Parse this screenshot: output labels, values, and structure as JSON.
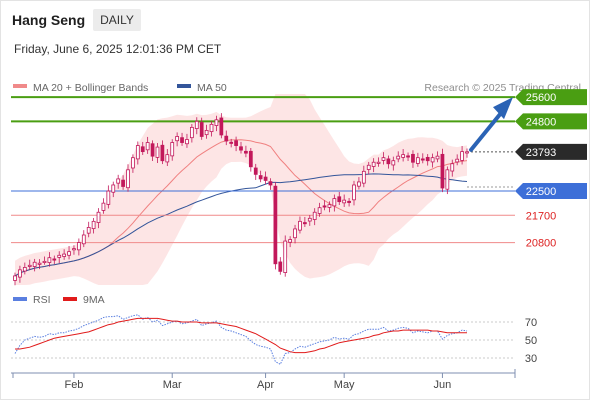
{
  "header": {
    "instrument": "Hang Seng",
    "timeframe": "DAILY",
    "timestamp": "Friday, June 6, 2025 12:01:36 PM CET",
    "copyright": "Research © 2025 Trading Central"
  },
  "colors": {
    "support_resistance_green": "#4a9e12",
    "pivot_blue": "#3d6fd8",
    "target_red": "#f08a8a",
    "candle": "#c2185b",
    "band_fill": "#fde0e0",
    "ma20": "#f08080",
    "ma50": "#33559a",
    "rsi": "#5a7fe0",
    "rsi_ma": "#e11b1b",
    "arrow": "#2b63b5",
    "last_price_bg": "#2a2a2a"
  },
  "chart_data": [
    {
      "type": "candlestick",
      "title": "Hang Seng",
      "legend": [
        {
          "label": "MA 20 + Bollinger Bands",
          "color": "#f08a8a"
        },
        {
          "label": "MA 50",
          "color": "#33559a"
        }
      ],
      "x_ticks": [
        "Feb",
        "Mar",
        "Apr",
        "May",
        "Jun"
      ],
      "ylim": [
        19400,
        25800
      ],
      "levels": [
        {
          "label": "25600",
          "value": 25600,
          "kind": "resistance"
        },
        {
          "label": "24800",
          "value": 24800,
          "kind": "resistance"
        },
        {
          "label": "23793",
          "value": 23793,
          "kind": "last"
        },
        {
          "label": "22500",
          "value": 22500,
          "kind": "pivot"
        },
        {
          "label": "21700",
          "value": 21700,
          "kind": "support"
        },
        {
          "label": "20800",
          "value": 20800,
          "kind": "support"
        }
      ],
      "close": [
        19700,
        19900,
        19980,
        20050,
        20150,
        20120,
        20180,
        20300,
        20250,
        20380,
        20420,
        20500,
        20600,
        20800,
        21050,
        21300,
        21500,
        21800,
        22100,
        22500,
        22700,
        22900,
        22650,
        23200,
        23600,
        24000,
        23800,
        24100,
        23650,
        23950,
        23500,
        23700,
        24100,
        24300,
        24100,
        24200,
        24600,
        24800,
        24300,
        24500,
        24700,
        24850,
        24350,
        24150,
        24100,
        24000,
        23850,
        23750,
        23300,
        23050,
        22900,
        22850,
        22700,
        20100,
        19850,
        20850,
        20900,
        21250,
        21500,
        21450,
        21600,
        21800,
        21950,
        22000,
        22050,
        22250,
        22150,
        22200,
        22150,
        22700,
        22800,
        23150,
        23350,
        23450,
        23450,
        23600,
        23400,
        23500,
        23650,
        23700,
        23650,
        23450,
        23600,
        23550,
        23500,
        23600,
        23650,
        22600,
        23200,
        23400,
        23550,
        23800,
        23793
      ]
    },
    {
      "type": "line",
      "title": "",
      "legend": [
        {
          "label": "RSI",
          "color": "#5a7fe0"
        },
        {
          "label": "9MA",
          "color": "#e11b1b"
        }
      ],
      "y_ticks": [
        70,
        50,
        30
      ],
      "ylim": [
        20,
        80
      ],
      "series": [
        {
          "name": "RSI",
          "values": [
            35,
            44,
            50,
            52,
            54,
            53,
            54,
            57,
            56,
            58,
            58,
            60,
            61,
            63,
            66,
            68,
            70,
            72,
            75,
            76,
            76,
            77,
            73,
            75,
            77,
            78,
            73,
            75,
            70,
            72,
            66,
            68,
            70,
            71,
            68,
            69,
            71,
            73,
            66,
            68,
            69,
            71,
            64,
            61,
            60,
            58,
            56,
            54,
            49,
            45,
            43,
            42,
            40,
            26,
            23,
            35,
            36,
            40,
            43,
            42,
            44,
            46,
            48,
            49,
            50,
            53,
            51,
            52,
            51,
            56,
            57,
            60,
            62,
            62,
            62,
            64,
            60,
            61,
            63,
            64,
            63,
            58,
            60,
            59,
            58,
            60,
            60,
            51,
            55,
            57,
            58,
            61,
            60
          ]
        },
        {
          "name": "9MA",
          "values": [
            40,
            40,
            41,
            42,
            44,
            46,
            48,
            50,
            52,
            53,
            54,
            55,
            56,
            57,
            58,
            59,
            61,
            63,
            65,
            67,
            68,
            70,
            71,
            72,
            73,
            74,
            74,
            74,
            74,
            74,
            73,
            72,
            71,
            71,
            70,
            70,
            70,
            70,
            69,
            69,
            69,
            69,
            68,
            67,
            66,
            65,
            63,
            61,
            59,
            57,
            54,
            51,
            48,
            45,
            41,
            39,
            37,
            36,
            36,
            36,
            37,
            38,
            40,
            41,
            43,
            45,
            47,
            48,
            49,
            50,
            51,
            52,
            53,
            55,
            56,
            58,
            59,
            60,
            60,
            61,
            61,
            61,
            61,
            61,
            61,
            60,
            60,
            59,
            58,
            58,
            58,
            58,
            58
          ]
        }
      ]
    }
  ]
}
